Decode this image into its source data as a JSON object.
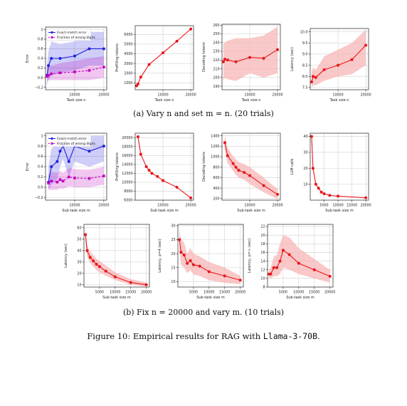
{
  "figure_caption": {
    "prefix": "Figure 10: Empirical results for RAG with ",
    "model": "Llama-3-70B",
    "suffix": "."
  },
  "subcaptions": {
    "a": "(a) Vary n and set m = n. (20 trials)",
    "b": "(b) Fix n = 20000 and vary m. (10 trials)"
  },
  "colors": {
    "exact_match": "#1f1fe0",
    "wrong_digits": "#c000c0",
    "main": "#e8161b",
    "band": "#f7b5b5",
    "grid": "#d0d0d0"
  },
  "chart_data": [
    {
      "type": "line",
      "id": "a1",
      "xlabel": "Task size n",
      "ylabel": "Error",
      "xlim": [
        0,
        21000
      ],
      "ylim": [
        -0.25,
        1.05
      ],
      "xticks": [
        10000,
        20000
      ],
      "xticklabels": [
        "10000",
        "20000"
      ],
      "yticks": [
        -0.2,
        0.0,
        0.2,
        0.4,
        0.6,
        0.8,
        1.0
      ],
      "yticklabels": [
        "−0.2",
        "0.0",
        "0.2",
        "0.4",
        "0.6",
        "0.8",
        "1"
      ],
      "legend": {
        "placement": "top-left",
        "entries": [
          "Exact-match error",
          "Fraction of wrong digits"
        ]
      },
      "grid": true,
      "series": [
        {
          "name": "Exact-match error",
          "color": "#1f1fe0",
          "marker": "circle",
          "linestyle": "solid",
          "x": [
            500,
            1000,
            2000,
            5000,
            10000,
            15000,
            20000
          ],
          "y": [
            0.05,
            0.25,
            0.4,
            0.4,
            0.45,
            0.6,
            0.6
          ],
          "band_low": [
            -0.15,
            -0.05,
            0.05,
            0.1,
            0.15,
            0.25,
            0.25
          ],
          "band_high": [
            0.25,
            0.55,
            0.75,
            0.7,
            0.75,
            0.95,
            0.95
          ]
        },
        {
          "name": "Fraction of wrong digits",
          "color": "#c000c0",
          "marker": "square",
          "linestyle": "dashed",
          "x": [
            500,
            1000,
            2000,
            5000,
            10000,
            15000,
            20000
          ],
          "y": [
            0.03,
            0.05,
            0.08,
            0.1,
            0.12,
            0.15,
            0.22
          ],
          "band_low": [
            -0.05,
            -0.05,
            -0.05,
            -0.05,
            -0.05,
            -0.05,
            0.0
          ],
          "band_high": [
            0.15,
            0.2,
            0.25,
            0.3,
            0.35,
            0.4,
            0.45
          ]
        }
      ]
    },
    {
      "type": "line",
      "id": "a2",
      "xlabel": "Task size n",
      "ylabel": "Prefilling tokens",
      "xlim": [
        0,
        21000
      ],
      "ylim": [
        300,
        6900
      ],
      "xticks": [
        10000,
        20000
      ],
      "xticklabels": [
        "10000",
        "20000"
      ],
      "yticks": [
        1000,
        2000,
        3000,
        4000,
        5000,
        6000
      ],
      "yticklabels": [
        "1000",
        "2000",
        "3000",
        "4000",
        "5000",
        "6000"
      ],
      "grid": true,
      "series": [
        {
          "color": "#e8161b",
          "x": [
            500,
            1000,
            2000,
            5000,
            10000,
            15000,
            20000
          ],
          "y": [
            700,
            900,
            1600,
            2900,
            4100,
            5300,
            6550
          ]
        }
      ]
    },
    {
      "type": "line",
      "id": "a3",
      "xlabel": "Task size n",
      "ylabel": "Decoding tokens",
      "xlim": [
        0,
        21000
      ],
      "ylim": [
        186,
        261
      ],
      "xticks": [
        10000,
        20000
      ],
      "xticklabels": [
        "10000",
        "20000"
      ],
      "yticks": [
        190,
        200,
        210,
        220,
        230,
        240,
        250,
        260
      ],
      "yticklabels": [
        "190",
        "200",
        "210",
        "220",
        "230",
        "240",
        "250",
        "260"
      ],
      "grid": true,
      "series": [
        {
          "color": "#e8161b",
          "x": [
            500,
            1000,
            2000,
            5000,
            10000,
            15000,
            20000
          ],
          "y": [
            218,
            221,
            220,
            218,
            223,
            222,
            232
          ],
          "band_low": [
            196,
            200,
            198,
            196,
            205,
            200,
            205
          ],
          "band_high": [
            238,
            240,
            242,
            245,
            245,
            248,
            258
          ]
        }
      ]
    },
    {
      "type": "line",
      "id": "a4",
      "xlabel": "Task size n",
      "ylabel": "Latency (sec)",
      "xlim": [
        0,
        21000
      ],
      "ylim": [
        7.4,
        10.15
      ],
      "xticks": [
        10000,
        20000
      ],
      "xticklabels": [
        "10000",
        "20000"
      ],
      "yticks": [
        7.5,
        8.0,
        8.5,
        9.0,
        9.5,
        10.0
      ],
      "yticklabels": [
        "7.5",
        "8.0",
        "8.5",
        "9.0",
        "9.5",
        "10.0"
      ],
      "grid": true,
      "series": [
        {
          "color": "#e8161b",
          "x": [
            500,
            1000,
            2000,
            5000,
            10000,
            15000,
            20000
          ],
          "y": [
            7.75,
            8.0,
            7.95,
            8.3,
            8.5,
            8.75,
            9.4
          ],
          "band_low": [
            7.5,
            7.6,
            7.6,
            7.8,
            8.0,
            8.1,
            8.5
          ],
          "band_high": [
            8.2,
            8.4,
            8.3,
            8.9,
            9.2,
            9.5,
            10.1
          ]
        }
      ]
    },
    {
      "type": "line",
      "id": "b1",
      "xlabel": "Sub-task size m",
      "ylabel": "Error",
      "xlim": [
        0,
        21000
      ],
      "ylim": [
        -0.25,
        1.05
      ],
      "xticks": [
        10000,
        20000
      ],
      "xticklabels": [
        "10000",
        "20000"
      ],
      "yticks": [
        -0.2,
        0.0,
        0.2,
        0.4,
        0.6,
        0.8,
        1.0
      ],
      "yticklabels": [
        "−0.2",
        "0.0",
        "0.2",
        "0.4",
        "0.6",
        "0.8",
        "1"
      ],
      "legend": {
        "placement": "top-left",
        "entries": [
          "Exact-match error",
          "Fraction of wrong digits"
        ]
      },
      "grid": true,
      "series": [
        {
          "name": "Exact-match error",
          "color": "#1f1fe0",
          "marker": "circle",
          "linestyle": "solid",
          "x": [
            1000,
            2000,
            4000,
            5000,
            6000,
            8000,
            10000,
            15000,
            20000
          ],
          "y": [
            0.1,
            0.4,
            0.5,
            0.7,
            0.8,
            0.5,
            0.8,
            0.7,
            0.8
          ],
          "band_low": [
            -0.05,
            0.05,
            0.15,
            0.4,
            0.55,
            0.2,
            0.5,
            0.4,
            0.5
          ],
          "band_high": [
            0.4,
            0.75,
            0.85,
            1.0,
            1.0,
            0.85,
            1.0,
            1.0,
            1.0
          ]
        },
        {
          "name": "Fraction of wrong digits",
          "color": "#c000c0",
          "marker": "square",
          "linestyle": "dashed",
          "x": [
            1000,
            2000,
            4000,
            5000,
            6000,
            8000,
            10000,
            15000,
            20000
          ],
          "y": [
            0.08,
            0.12,
            0.1,
            0.15,
            0.12,
            0.2,
            0.18,
            0.17,
            0.22
          ],
          "band_low": [
            -0.05,
            -0.05,
            -0.05,
            -0.02,
            -0.03,
            0.02,
            0.0,
            0.0,
            0.05
          ],
          "band_high": [
            0.25,
            0.3,
            0.28,
            0.32,
            0.28,
            0.38,
            0.35,
            0.34,
            0.4
          ]
        }
      ]
    },
    {
      "type": "line",
      "id": "b2",
      "xlabel": "Sub-task size m",
      "ylabel": "Prefilling tokens",
      "xlim": [
        0,
        21000
      ],
      "ylim": [
        6000,
        21000
      ],
      "xticks": [
        10000,
        20000
      ],
      "xticklabels": [
        "10000",
        "20000"
      ],
      "yticks": [
        6000,
        8000,
        10000,
        12000,
        14000,
        16000,
        18000,
        20000
      ],
      "yticklabels": [
        "6000",
        "8000",
        "10000",
        "12000",
        "14000",
        "16000",
        "18000",
        "20000"
      ],
      "grid": true,
      "series": [
        {
          "color": "#e8161b",
          "x": [
            1000,
            2000,
            4000,
            5000,
            6000,
            8000,
            10000,
            15000,
            20000
          ],
          "y": [
            20200,
            16300,
            13500,
            12700,
            12000,
            11300,
            10400,
            8900,
            6500
          ]
        }
      ]
    },
    {
      "type": "line",
      "id": "b3",
      "xlabel": "Sub-task size m",
      "ylabel": "Decoding tokens",
      "xlim": [
        0,
        21000
      ],
      "ylim": [
        170,
        1450
      ],
      "xticks": [
        10000,
        20000
      ],
      "xticklabels": [
        "10000",
        "20000"
      ],
      "yticks": [
        200,
        400,
        600,
        800,
        1000,
        1200,
        1400
      ],
      "yticklabels": [
        "200",
        "400",
        "600",
        "800",
        "1000",
        "1200",
        "1400"
      ],
      "grid": true,
      "series": [
        {
          "color": "#e8161b",
          "x": [
            1000,
            2000,
            4000,
            5000,
            6000,
            8000,
            10000,
            15000,
            20000
          ],
          "y": [
            1270,
            1020,
            870,
            800,
            740,
            700,
            640,
            450,
            280
          ],
          "band_low": [
            1120,
            880,
            730,
            660,
            600,
            560,
            480,
            320,
            190
          ],
          "band_high": [
            1420,
            1170,
            1010,
            950,
            900,
            860,
            800,
            600,
            380
          ]
        }
      ]
    },
    {
      "type": "line",
      "id": "b4",
      "xlabel": "Sub-task size m",
      "ylabel": "LLM calls",
      "xlim": [
        0,
        21000
      ],
      "ylim": [
        0,
        42
      ],
      "xticks": [
        5000,
        10000,
        15000,
        20000
      ],
      "xticklabels": [
        "5000",
        "10000",
        "15000",
        "20000"
      ],
      "yticks": [
        10,
        20,
        30,
        40
      ],
      "yticklabels": [
        "10",
        "20",
        "30",
        "40"
      ],
      "grid": true,
      "series": [
        {
          "color": "#e8161b",
          "x": [
            500,
            1000,
            2000,
            3000,
            4000,
            5000,
            7000,
            10000,
            20000
          ],
          "y": [
            40,
            20,
            10,
            7.5,
            5,
            4,
            3,
            2.5,
            1.5
          ]
        }
      ]
    },
    {
      "type": "line",
      "id": "c1",
      "xlabel": "Sub-task size m",
      "ylabel": "Latency (sec)",
      "xlim": [
        0,
        21000
      ],
      "ylim": [
        8,
        63
      ],
      "xticks": [
        5000,
        10000,
        15000,
        20000
      ],
      "xticklabels": [
        "5000",
        "10000",
        "15000",
        "20000"
      ],
      "yticks": [
        10,
        20,
        30,
        40,
        50,
        60
      ],
      "yticklabels": [
        "10",
        "20",
        "30",
        "40",
        "50",
        "60"
      ],
      "grid": true,
      "series": [
        {
          "color": "#e8161b",
          "x": [
            500,
            1000,
            2000,
            3000,
            4000,
            5000,
            7000,
            10000,
            15000,
            20000
          ],
          "y": [
            54,
            40,
            34,
            31,
            28,
            26,
            22,
            17,
            12,
            10
          ],
          "band_low": [
            48,
            35,
            29,
            26,
            23,
            21,
            18,
            14,
            10,
            8.5
          ],
          "band_high": [
            60,
            45,
            39,
            36,
            33,
            31,
            27,
            21,
            15,
            12
          ]
        }
      ]
    },
    {
      "type": "line",
      "id": "c2",
      "xlabel": "Sub-task size m",
      "ylabel": "Latency, p=4 (sec)",
      "xlim": [
        0,
        21000
      ],
      "ylim": [
        8,
        30.5
      ],
      "xticks": [
        5000,
        10000,
        15000,
        20000
      ],
      "xticklabels": [
        "5000",
        "10000",
        "15000",
        "20000"
      ],
      "yticks": [
        10,
        15,
        20,
        25,
        30
      ],
      "yticklabels": [
        "10",
        "15",
        "20",
        "25",
        "30"
      ],
      "grid": true,
      "series": [
        {
          "color": "#e8161b",
          "x": [
            500,
            1000,
            2000,
            3000,
            4000,
            5000,
            7000,
            10000,
            15000,
            20000
          ],
          "y": [
            25,
            20.5,
            19.5,
            16.5,
            17.5,
            16,
            15.5,
            13.5,
            12,
            10.5
          ],
          "band_low": [
            21,
            16,
            15,
            13,
            14,
            12.5,
            12,
            10.5,
            9.5,
            9
          ],
          "band_high": [
            29,
            25,
            24,
            20,
            22,
            20,
            19,
            17,
            15,
            12
          ]
        }
      ]
    },
    {
      "type": "line",
      "id": "c3",
      "xlabel": "Sub-task size m",
      "ylabel": "Latency, p=∞ (sec)",
      "xlim": [
        0,
        21000
      ],
      "ylim": [
        8,
        22.5
      ],
      "xticks": [
        5000,
        10000,
        15000,
        20000
      ],
      "xticklabels": [
        "5000",
        "10000",
        "15000",
        "20000"
      ],
      "yticks": [
        8,
        10,
        12,
        14,
        16,
        18,
        20,
        22
      ],
      "yticklabels": [
        "8",
        "10",
        "12",
        "14",
        "16",
        "18",
        "20",
        "22"
      ],
      "grid": true,
      "series": [
        {
          "color": "#e8161b",
          "x": [
            500,
            1000,
            2000,
            3000,
            4000,
            5000,
            7000,
            10000,
            15000,
            20000
          ],
          "y": [
            11,
            11,
            12.5,
            12.5,
            14,
            16.5,
            15.5,
            13.5,
            12,
            10.5
          ],
          "band_low": [
            10,
            10,
            10.5,
            10.5,
            11,
            12.5,
            12,
            11,
            10,
            9
          ],
          "band_high": [
            12,
            12.5,
            15,
            15.5,
            18,
            20,
            19.5,
            17,
            14.5,
            12
          ]
        }
      ]
    }
  ]
}
